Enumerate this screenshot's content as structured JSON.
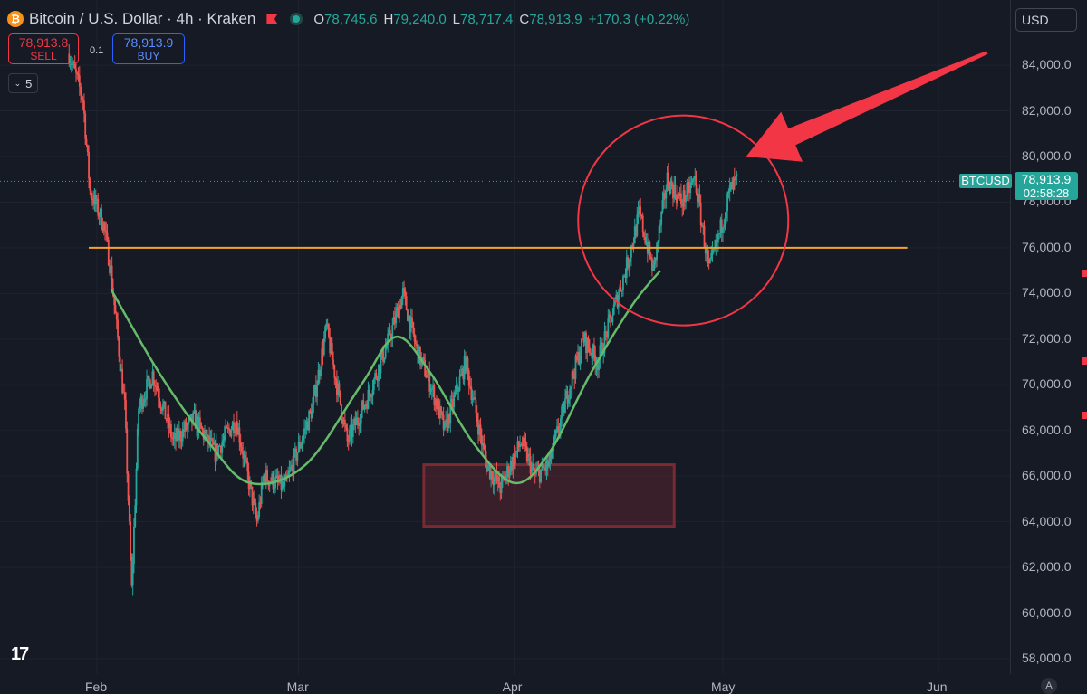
{
  "header": {
    "title": "Bitcoin / U.S. Dollar · 4h · Kraken",
    "ohlc": [
      {
        "k": "O",
        "v": "78,745.6"
      },
      {
        "k": "H",
        "v": "79,240.0"
      },
      {
        "k": "L",
        "v": "78,717.4"
      },
      {
        "k": "C",
        "v": "78,913.9"
      }
    ],
    "change": "+170.3 (+0.22%)"
  },
  "trade": {
    "sell_price": "78,913.8",
    "sell_label": "SELL",
    "spread": "0.1",
    "buy_price": "78,913.9",
    "buy_label": "BUY"
  },
  "indicators_count": "5",
  "currency": "USD",
  "last_price": {
    "symbol": "BTCUSD",
    "price": "78,913.9",
    "countdown": "02:58:28"
  },
  "auto_label": "A",
  "colors": {
    "up": "#26a69a",
    "down": "#ef5350",
    "background": "#161a25",
    "resistance_line": "#f7a326",
    "trend_curve": "#66bb6a",
    "annotation": "#f23645",
    "support_zone": "#7a2a32"
  },
  "chart_data": {
    "type": "candlestick",
    "title": "Bitcoin / U.S. Dollar · 4h · Kraken",
    "ylim": [
      57500,
      85500
    ],
    "x_tick_labels": [
      "Feb",
      "Mar",
      "Apr",
      "May",
      "Jun"
    ],
    "y_tick_labels": [
      "84,000.0",
      "82,000.0",
      "80,000.0",
      "78,000.0",
      "76,000.0",
      "74,000.0",
      "72,000.0",
      "70,000.0",
      "68,000.0",
      "66,000.0",
      "64,000.0",
      "62,000.0",
      "60,000.0",
      "58,000.0"
    ],
    "y_ticks": [
      84000,
      82000,
      80000,
      78000,
      76000,
      74000,
      72000,
      70000,
      68000,
      66000,
      64000,
      62000,
      60000,
      58000
    ],
    "x_ticks": [
      "Feb 1",
      "Mar 1",
      "Apr 1",
      "May 1",
      "Jun 1"
    ],
    "grid": true,
    "last_price": 78913.9,
    "price_path": [
      {
        "date": "Jan 28",
        "price": 84500
      },
      {
        "date": "Jan 30",
        "price": 82500
      },
      {
        "date": "Jan 31",
        "price": 78500
      },
      {
        "date": "Feb 2",
        "price": 77000
      },
      {
        "date": "Feb 3",
        "price": 75000
      },
      {
        "date": "Feb 5",
        "price": 69000
      },
      {
        "date": "Feb 6",
        "price": 61000
      },
      {
        "date": "Feb 7",
        "price": 69000
      },
      {
        "date": "Feb 9",
        "price": 70500
      },
      {
        "date": "Feb 12",
        "price": 67500
      },
      {
        "date": "Feb 15",
        "price": 68500
      },
      {
        "date": "Feb 18",
        "price": 67000
      },
      {
        "date": "Feb 21",
        "price": 68500
      },
      {
        "date": "Feb 24",
        "price": 64000
      },
      {
        "date": "Feb 25",
        "price": 66000
      },
      {
        "date": "Feb 28",
        "price": 65500
      },
      {
        "date": "Mar 3",
        "price": 69000
      },
      {
        "date": "Mar 5",
        "price": 72500
      },
      {
        "date": "Mar 8",
        "price": 67500
      },
      {
        "date": "Mar 11",
        "price": 69500
      },
      {
        "date": "Mar 14",
        "price": 72000
      },
      {
        "date": "Mar 16",
        "price": 74000
      },
      {
        "date": "Mar 18",
        "price": 71500
      },
      {
        "date": "Mar 20",
        "price": 70000
      },
      {
        "date": "Mar 22",
        "price": 68000
      },
      {
        "date": "Mar 25",
        "price": 71000
      },
      {
        "date": "Mar 28",
        "price": 66500
      },
      {
        "date": "Mar 30",
        "price": 65500
      },
      {
        "date": "Apr 2",
        "price": 67500
      },
      {
        "date": "Apr 4",
        "price": 66000
      },
      {
        "date": "Apr 6",
        "price": 66500
      },
      {
        "date": "Apr 9",
        "price": 70000
      },
      {
        "date": "Apr 11",
        "price": 72000
      },
      {
        "date": "Apr 13",
        "price": 71000
      },
      {
        "date": "Apr 15",
        "price": 73000
      },
      {
        "date": "Apr 17",
        "price": 75000
      },
      {
        "date": "Apr 19",
        "price": 77500
      },
      {
        "date": "Apr 21",
        "price": 75000
      },
      {
        "date": "Apr 23",
        "price": 79000
      },
      {
        "date": "Apr 25",
        "price": 78000
      },
      {
        "date": "Apr 27",
        "price": 79000
      },
      {
        "date": "Apr 29",
        "price": 75000
      },
      {
        "date": "Apr 30",
        "price": 76000
      },
      {
        "date": "May 2",
        "price": 78500
      },
      {
        "date": "May 3",
        "price": 78913.9
      }
    ],
    "annotations": {
      "resistance_line": {
        "price": 76000,
        "from": "Feb 1",
        "to": "May 27"
      },
      "support_zone": {
        "price_low": 63800,
        "price_high": 66500,
        "from": "Mar 19",
        "to": "Apr 24"
      },
      "trend_curve": [
        {
          "date": "Feb 3",
          "price": 74200
        },
        {
          "date": "Feb 10",
          "price": 70500
        },
        {
          "date": "Feb 17",
          "price": 67500
        },
        {
          "date": "Feb 23",
          "price": 65700
        },
        {
          "date": "Mar 2",
          "price": 66500
        },
        {
          "date": "Mar 10",
          "price": 70000
        },
        {
          "date": "Mar 15",
          "price": 72100
        },
        {
          "date": "Mar 20",
          "price": 70500
        },
        {
          "date": "Mar 26",
          "price": 67500
        },
        {
          "date": "Apr 1",
          "price": 65700
        },
        {
          "date": "Apr 6",
          "price": 67000
        },
        {
          "date": "Apr 12",
          "price": 70500
        },
        {
          "date": "Apr 18",
          "price": 73500
        },
        {
          "date": "Apr 22",
          "price": 75000
        }
      ],
      "highlight_circle": {
        "center_date": "Apr 24",
        "center_price": 77200
      },
      "arrow": {
        "from": "Jun 8",
        "to": "May 8",
        "target_price": 80000
      }
    }
  }
}
